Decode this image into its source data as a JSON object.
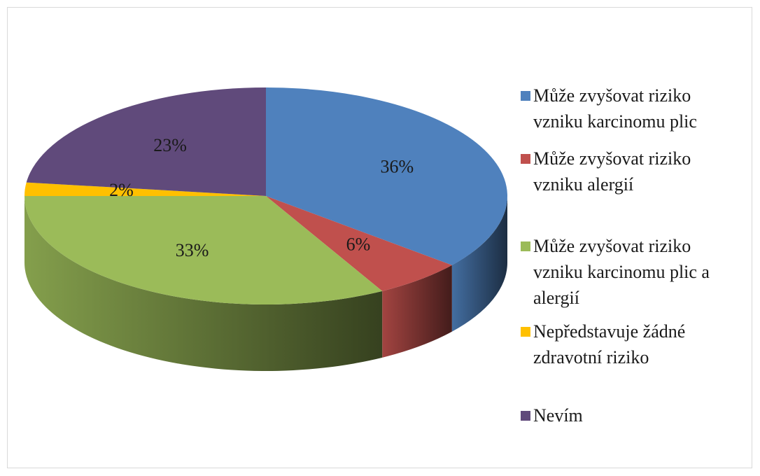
{
  "chart_data": {
    "type": "pie3d",
    "categories": [
      "Může zvyšovat riziko vzniku karcinomu plic",
      "Může zvyšovat riziko vzniku alergií",
      "Může zvyšovat riziko vzniku karcinomu plic a alergií",
      "Nepředstavuje žádné zdravotní riziko",
      "Nevím"
    ],
    "values": [
      36,
      6,
      33,
      2,
      23
    ],
    "value_labels": [
      "36%",
      "6%",
      "33%",
      "2%",
      "23%"
    ],
    "colors": [
      "#4f81bd",
      "#c0504d",
      "#9bbb59",
      "#ffc000",
      "#604a7b"
    ],
    "legend": "right"
  }
}
